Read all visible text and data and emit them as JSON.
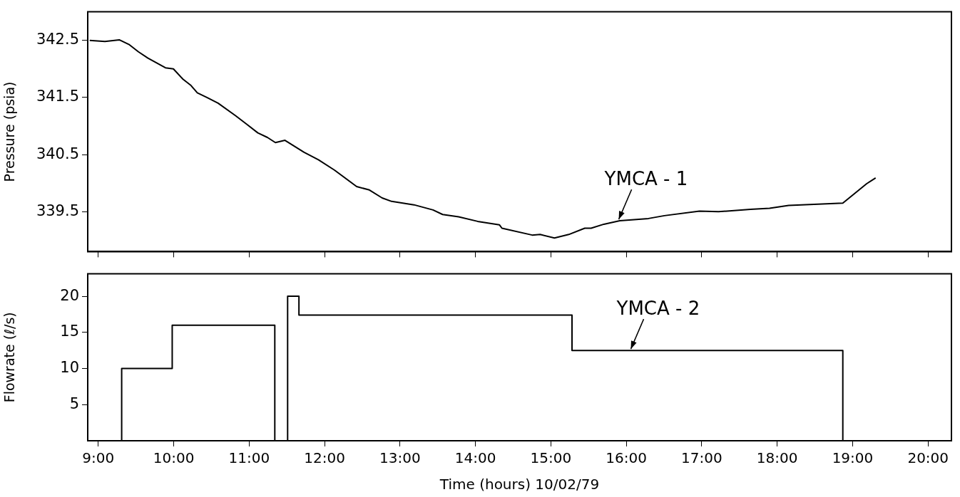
{
  "chart_data": [
    {
      "type": "line",
      "ylabel": "Pressure (psia)",
      "color": "#000000",
      "tick_labels": "y",
      "x": [
        8.886,
        9.088,
        9.278,
        9.405,
        9.532,
        9.658,
        9.89,
        9.996,
        10.123,
        10.229,
        10.313,
        10.44,
        10.588,
        10.82,
        10.968,
        11.115,
        11.242,
        11.348,
        11.475,
        11.728,
        11.918,
        12.129,
        12.425,
        12.594,
        12.763,
        12.889,
        13.185,
        13.438,
        13.565,
        13.777,
        14.029,
        14.317,
        14.351,
        14.752,
        14.857,
        15.047,
        15.237,
        15.449,
        15.533,
        15.702,
        15.913,
        16.293,
        16.505,
        16.97,
        17.222,
        17.645,
        17.899,
        18.152,
        18.321,
        18.87,
        19.018,
        19.186,
        19.305
      ],
      "values": [
        342.5,
        342.48,
        342.51,
        342.43,
        342.3,
        342.19,
        342.02,
        342.0,
        341.82,
        341.71,
        341.58,
        341.5,
        341.4,
        341.18,
        341.03,
        340.88,
        340.8,
        340.71,
        340.75,
        340.54,
        340.41,
        340.23,
        339.94,
        339.88,
        339.74,
        339.68,
        339.62,
        339.53,
        339.45,
        339.41,
        339.33,
        339.27,
        339.21,
        339.09,
        339.1,
        339.04,
        339.1,
        339.21,
        339.21,
        339.28,
        339.34,
        339.38,
        339.43,
        339.51,
        339.5,
        339.54,
        339.56,
        339.61,
        339.62,
        339.65,
        339.81,
        339.99,
        340.09
      ],
      "xlim": [
        8.86,
        20.31
      ],
      "xticks": [
        9,
        10,
        11,
        12,
        13,
        14,
        15,
        16,
        17,
        18,
        19,
        20
      ],
      "ylim": [
        338.8,
        343.0
      ],
      "yticks": [
        339.5,
        340.5,
        341.5,
        342.5
      ],
      "annotations": [
        {
          "text": "YMCA - 1",
          "x": 15.9,
          "y": 339.34
        }
      ]
    },
    {
      "type": "step",
      "xlabel": "Time (hours) 10/02/79",
      "ylabel": "Flowrate (ℓ/s)",
      "color": "#000000",
      "x": [
        8.86,
        9.31,
        9.98,
        11.34,
        11.51,
        11.66,
        15.28,
        18.87
      ],
      "values": [
        0,
        10,
        16,
        0,
        20,
        17.4,
        12.5,
        0
      ],
      "xlim": [
        8.86,
        20.31
      ],
      "xticks": [
        {
          "value": 9,
          "label": "9:00"
        },
        {
          "value": 10,
          "label": "10:00"
        },
        {
          "value": 11,
          "label": "11:00"
        },
        {
          "value": 12,
          "label": "12:00"
        },
        {
          "value": 13,
          "label": "13:00"
        },
        {
          "value": 14,
          "label": "14:00"
        },
        {
          "value": 15,
          "label": "15:00"
        },
        {
          "value": 16,
          "label": "16:00"
        },
        {
          "value": 17,
          "label": "17:00"
        },
        {
          "value": 18,
          "label": "18:00"
        },
        {
          "value": 19,
          "label": "19:00"
        },
        {
          "value": 20,
          "label": "20:00"
        }
      ],
      "ylim": [
        0,
        23.1
      ],
      "yticks": [
        5,
        10,
        15,
        20
      ],
      "annotations": [
        {
          "text": "YMCA - 2",
          "x": 16.06,
          "y": 12.5
        }
      ]
    }
  ]
}
